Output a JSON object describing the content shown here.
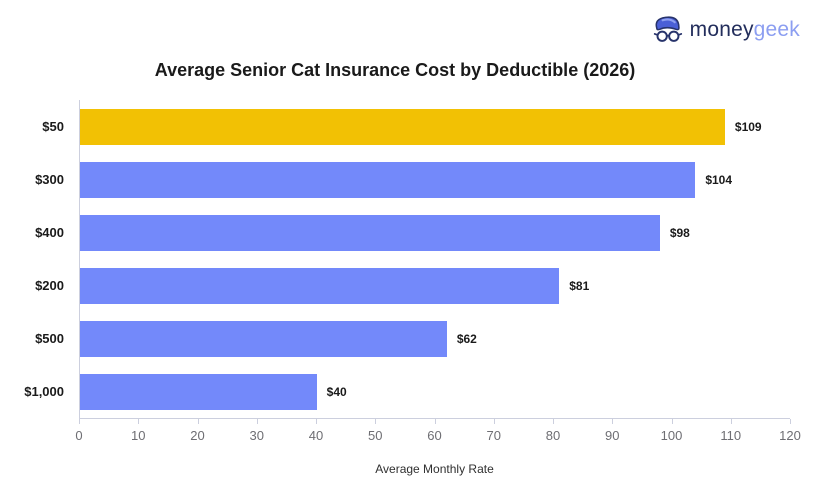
{
  "logo": {
    "text_primary": "money",
    "text_secondary": "geek"
  },
  "chart_data": {
    "type": "bar",
    "orientation": "horizontal",
    "title": "Average Senior Cat Insurance Cost by Deductible (2026)",
    "xlabel": "Average Monthly Rate",
    "categories": [
      "$50",
      "$300",
      "$400",
      "$200",
      "$500",
      "$1,000"
    ],
    "values": [
      109,
      104,
      98,
      81,
      62,
      40
    ],
    "value_labels": [
      "$109",
      "$104",
      "$98",
      "$81",
      "$62",
      "$40"
    ],
    "xlim": [
      0,
      120
    ],
    "xticks": [
      0,
      10,
      20,
      30,
      40,
      50,
      60,
      70,
      80,
      90,
      100,
      110,
      120
    ],
    "grid": false,
    "legend": "none",
    "highlight_index": 0,
    "colors": {
      "highlight": "#F2C104",
      "default": "#7389FA",
      "axis_line": "#CCCFDE",
      "tick_text": "#6E6E73"
    }
  }
}
